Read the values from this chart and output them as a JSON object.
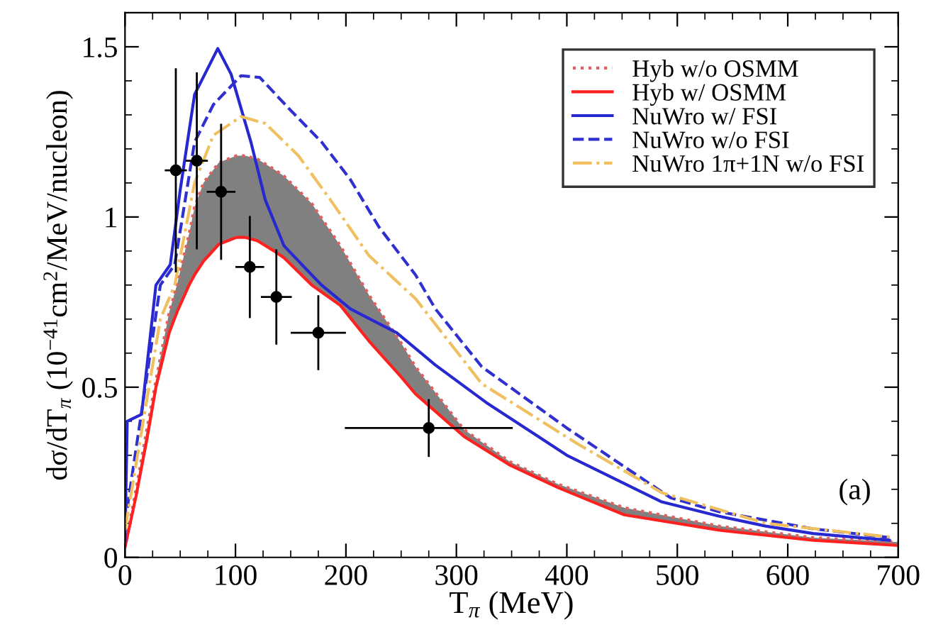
{
  "chart_data": {
    "type": "line",
    "xlabel": "T$_{π}$ (MeV)",
    "ylabel": "dσ/dT$_{π}$ (10$^{−41}$cm$^{2}$/MeV/nucleon)",
    "xlim": [
      0,
      700
    ],
    "ylim": [
      0,
      1.6
    ],
    "xticks": [
      0,
      100,
      200,
      300,
      400,
      500,
      600,
      700
    ],
    "yticks": [
      0,
      0.5,
      1,
      1.5
    ],
    "grid": false,
    "legend": "top right",
    "annotations": [
      "(a)"
    ],
    "series": [
      {
        "name": "Hyb w/o OSMM",
        "color": "#e06060",
        "line_style": "dotted",
        "x": [
          0,
          10,
          20,
          28,
          40,
          47,
          58,
          63,
          71,
          85,
          101,
          109,
          120,
          135,
          144,
          169,
          195,
          221,
          250,
          263,
          307,
          349,
          392,
          452,
          538,
          623,
          700
        ],
        "values": [
          0.03,
          0.2,
          0.38,
          0.52,
          0.72,
          0.8,
          0.95,
          1.03,
          1.1,
          1.16,
          1.18,
          1.18,
          1.17,
          1.14,
          1.12,
          1.04,
          0.915,
          0.77,
          0.63,
          0.56,
          0.375,
          0.28,
          0.215,
          0.146,
          0.092,
          0.058,
          0.045
        ],
        "lower": [
          0.03,
          0.18,
          0.35,
          0.5,
          0.66,
          0.72,
          0.8,
          0.83,
          0.87,
          0.92,
          0.94,
          0.94,
          0.93,
          0.9,
          0.88,
          0.8,
          0.74,
          0.635,
          0.53,
          0.48,
          0.355,
          0.27,
          0.205,
          0.125,
          0.08,
          0.05,
          0.035
        ],
        "upper": [
          0.03,
          0.2,
          0.38,
          0.52,
          0.72,
          0.8,
          0.95,
          1.03,
          1.1,
          1.16,
          1.18,
          1.18,
          1.17,
          1.14,
          1.12,
          1.04,
          0.915,
          0.77,
          0.63,
          0.56,
          0.375,
          0.28,
          0.215,
          0.146,
          0.092,
          0.058,
          0.045
        ]
      },
      {
        "name": "Hyb w/ OSMM",
        "color": "#ff2020",
        "line_style": "solid",
        "x": [
          0,
          10,
          20,
          28,
          40,
          47,
          58,
          63,
          71,
          85,
          101,
          109,
          120,
          135,
          144,
          169,
          195,
          221,
          250,
          263,
          307,
          349,
          392,
          452,
          538,
          623,
          700
        ],
        "values": [
          0.03,
          0.18,
          0.35,
          0.5,
          0.66,
          0.72,
          0.8,
          0.83,
          0.87,
          0.92,
          0.94,
          0.94,
          0.93,
          0.9,
          0.88,
          0.8,
          0.74,
          0.635,
          0.53,
          0.48,
          0.355,
          0.27,
          0.205,
          0.125,
          0.08,
          0.05,
          0.035
        ]
      },
      {
        "name": "NuWro w/ FSI",
        "color": "#2828d0",
        "line_style": "solid",
        "x": [
          0,
          2,
          15,
          28,
          41,
          50,
          63,
          84,
          96,
          114,
          127,
          144,
          169,
          178,
          204,
          246,
          281,
          327,
          400,
          486,
          538,
          580,
          623,
          692
        ],
        "values": [
          0.05,
          0.4,
          0.42,
          0.8,
          0.86,
          1.08,
          1.36,
          1.495,
          1.42,
          1.22,
          1.05,
          0.915,
          0.83,
          0.8,
          0.73,
          0.66,
          0.565,
          0.455,
          0.3,
          0.163,
          0.121,
          0.092,
          0.07,
          0.05
        ]
      },
      {
        "name": "NuWro w/o FSI",
        "color": "#3030d0",
        "line_style": "dashed",
        "x": [
          0,
          32,
          45,
          63,
          80,
          105,
          122,
          148,
          178,
          204,
          230,
          263,
          281,
          323,
          400,
          494,
          538,
          623,
          692
        ],
        "values": [
          0.1,
          0.8,
          0.86,
          1.22,
          1.33,
          1.415,
          1.41,
          1.32,
          1.22,
          1.11,
          0.97,
          0.83,
          0.73,
          0.56,
          0.38,
          0.175,
          0.134,
          0.084,
          0.058
        ]
      },
      {
        "name": "NuWro 1π+1N w/o FSI",
        "color": "#f0c060",
        "line_style": "dashdot",
        "x": [
          0,
          32,
          45,
          63,
          80,
          105,
          127,
          157,
          186,
          221,
          263,
          323,
          409,
          486,
          580,
          692
        ],
        "values": [
          0.08,
          0.7,
          0.8,
          1.1,
          1.24,
          1.295,
          1.275,
          1.18,
          1.05,
          0.886,
          0.76,
          0.51,
          0.335,
          0.19,
          0.1,
          0.06
        ]
      },
      {
        "type": "scatter",
        "color": "#000000",
        "marker": "circle",
        "x": [
          46,
          65,
          87,
          113,
          137,
          175,
          275
        ],
        "values": [
          1.137,
          1.165,
          1.074,
          0.853,
          0.765,
          0.66,
          0.38
        ],
        "errors": [
          0.3,
          0.26,
          0.2,
          0.15,
          0.14,
          0.11,
          0.085
        ],
        "xerrors": [
          10,
          10,
          13,
          13,
          14,
          25,
          76
        ]
      }
    ]
  }
}
